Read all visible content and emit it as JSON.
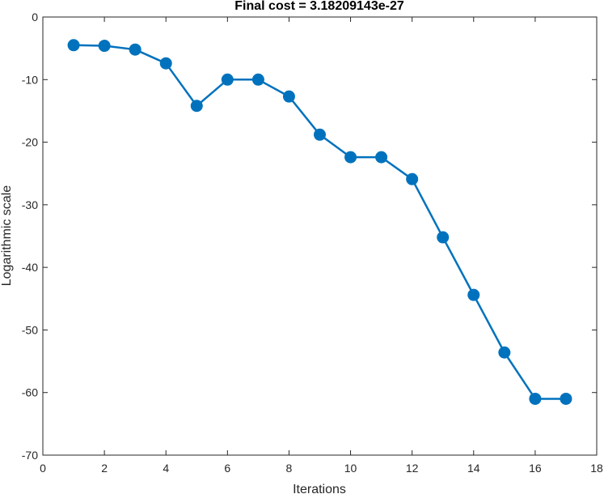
{
  "chart_data": {
    "type": "line",
    "title": "Final cost = 3.18209143e-27",
    "xlabel": "Iterations",
    "ylabel": "Logarithmic scale",
    "xlim": [
      0,
      18
    ],
    "ylim": [
      -70,
      0
    ],
    "x_ticks": [
      0,
      2,
      4,
      6,
      8,
      10,
      12,
      14,
      16,
      18
    ],
    "y_ticks": [
      0,
      -10,
      -20,
      -30,
      -40,
      -50,
      -60,
      -70
    ],
    "grid": false,
    "marker": "filled-circle",
    "line_color": "#0072BD",
    "series": [
      {
        "x": [
          1,
          2,
          3,
          4,
          5,
          6,
          7,
          8,
          9,
          10,
          11,
          12,
          13,
          14,
          15,
          16,
          17
        ],
        "values": [
          -4.5,
          -4.6,
          -5.2,
          -7.4,
          -14.2,
          -10.0,
          -10.0,
          -12.7,
          -18.8,
          -22.4,
          -22.4,
          -25.9,
          -35.2,
          -44.4,
          -53.6,
          -61.0,
          -61.0
        ]
      }
    ]
  }
}
